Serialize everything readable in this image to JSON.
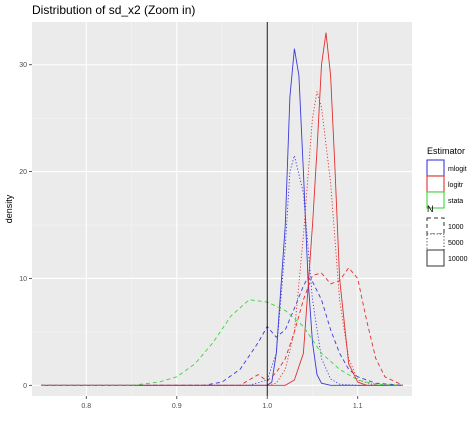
{
  "chart_data": {
    "type": "line",
    "title": "Distribution of sd_x2 (Zoom in)",
    "xlabel": "",
    "ylabel": "density",
    "xlim": [
      0.74,
      1.16
    ],
    "ylim": [
      -1,
      34
    ],
    "x_ticks": [
      0.8,
      0.9,
      1.0,
      1.1
    ],
    "x_tick_labels": [
      "0.8",
      "0.9",
      "1.0",
      "1.1"
    ],
    "y_ticks": [
      0,
      10,
      20,
      30
    ],
    "y_tick_labels": [
      "0",
      "10",
      "20",
      "30"
    ],
    "grid": true,
    "reference_line_x": 1.0,
    "legend": {
      "placement": "right",
      "color_title": "Estimator",
      "linetype_title": "N",
      "estimators": [
        {
          "name": "mlogit",
          "color": "#3b3bd9"
        },
        {
          "name": "logitr",
          "color": "#e0302e"
        },
        {
          "name": "stata",
          "color": "#3ed43e"
        }
      ],
      "sizes": [
        {
          "name": "1000",
          "dash": "dashed"
        },
        {
          "name": "5000",
          "dash": "dotted"
        },
        {
          "name": "10000",
          "dash": "solid"
        }
      ]
    },
    "series": [
      {
        "estimator": "mlogit",
        "size": "1000",
        "color": "#3b3bd9",
        "dash": "dashed",
        "x": [
          0.75,
          0.93,
          0.95,
          0.97,
          0.99,
          1.0,
          1.01,
          1.02,
          1.03,
          1.04,
          1.045,
          1.05,
          1.06,
          1.07,
          1.08,
          1.09,
          1.1,
          1.12,
          1.15
        ],
        "y": [
          0,
          0,
          0.3,
          1.5,
          4,
          5.5,
          4.5,
          5.2,
          7.2,
          9.3,
          10.1,
          9.7,
          8,
          5.2,
          3,
          1.5,
          0.8,
          0.2,
          0
        ]
      },
      {
        "estimator": "mlogit",
        "size": "5000",
        "color": "#3b3bd9",
        "dash": "dotted",
        "x": [
          0.75,
          0.98,
          1.0,
          1.01,
          1.02,
          1.025,
          1.03,
          1.04,
          1.05,
          1.06,
          1.07,
          1.08,
          1.1,
          1.15
        ],
        "y": [
          0,
          0,
          0.5,
          3,
          13,
          20,
          21.5,
          18,
          8,
          2.5,
          0.6,
          0.1,
          0,
          0
        ]
      },
      {
        "estimator": "mlogit",
        "size": "10000",
        "color": "#3b3bd9",
        "dash": "solid",
        "x": [
          0.75,
          1.0,
          1.005,
          1.01,
          1.02,
          1.025,
          1.03,
          1.035,
          1.04,
          1.045,
          1.05,
          1.055,
          1.06,
          1.07,
          1.15
        ],
        "y": [
          0,
          0,
          0.3,
          3,
          15,
          27,
          31.5,
          29,
          20,
          10,
          4,
          1,
          0.2,
          0,
          0
        ]
      },
      {
        "estimator": "logitr",
        "size": "1000",
        "color": "#e0302e",
        "dash": "dashed",
        "x": [
          0.75,
          0.97,
          0.98,
          0.99,
          1.0,
          1.01,
          1.02,
          1.03,
          1.04,
          1.05,
          1.06,
          1.07,
          1.08,
          1.09,
          1.1,
          1.11,
          1.12,
          1.13,
          1.15
        ],
        "y": [
          0,
          0,
          0.5,
          1,
          0.4,
          1.2,
          2.5,
          5,
          8,
          10.3,
          10.5,
          9.5,
          9.8,
          11,
          10,
          6,
          2.5,
          0.8,
          0
        ]
      },
      {
        "estimator": "logitr",
        "size": "5000",
        "color": "#e0302e",
        "dash": "dotted",
        "x": [
          0.75,
          1.0,
          1.01,
          1.02,
          1.03,
          1.04,
          1.05,
          1.055,
          1.06,
          1.07,
          1.08,
          1.09,
          1.1,
          1.12,
          1.15
        ],
        "y": [
          0,
          0,
          0.2,
          1.5,
          5,
          14,
          25,
          27.5,
          26,
          19,
          8,
          2.5,
          0.5,
          0,
          0
        ]
      },
      {
        "estimator": "logitr",
        "size": "10000",
        "color": "#e0302e",
        "dash": "solid",
        "x": [
          0.75,
          1.02,
          1.03,
          1.04,
          1.05,
          1.055,
          1.06,
          1.065,
          1.07,
          1.075,
          1.08,
          1.09,
          1.1,
          1.11,
          1.15
        ],
        "y": [
          0,
          0,
          0.5,
          3,
          15,
          22,
          30,
          33,
          29,
          20,
          10,
          2,
          0.3,
          0,
          0
        ]
      },
      {
        "estimator": "stata",
        "size": "1000",
        "color": "#3ed43e",
        "dash": "dashed",
        "x": [
          0.75,
          0.85,
          0.88,
          0.9,
          0.92,
          0.94,
          0.96,
          0.98,
          1.0,
          1.02,
          1.04,
          1.06,
          1.08,
          1.1,
          1.12,
          1.15
        ],
        "y": [
          0,
          0,
          0.3,
          0.8,
          2,
          4,
          6.5,
          8,
          7.8,
          7,
          5.5,
          3,
          1.5,
          0.5,
          0.1,
          0
        ]
      }
    ]
  }
}
